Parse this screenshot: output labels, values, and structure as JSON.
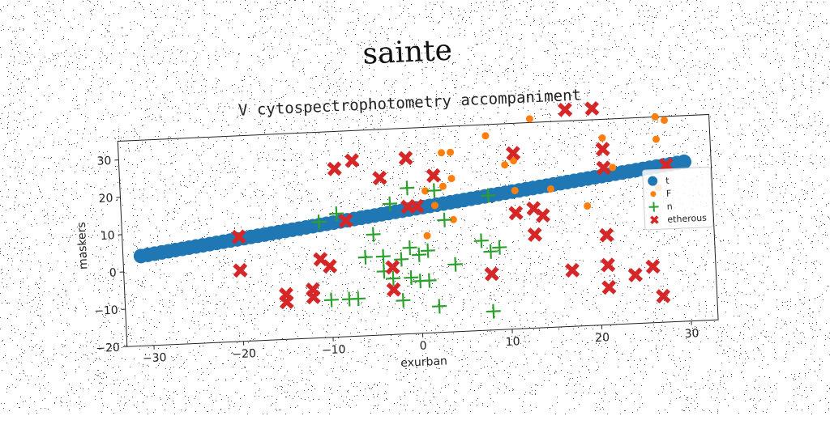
{
  "chart_data": {
    "type": "scatter",
    "title": "sainte",
    "subtitle": "V cytospectrophotometry accompaniment",
    "xlabel": "exurban",
    "ylabel": "maskers",
    "xlim": [
      -33,
      33
    ],
    "ylim": [
      -20,
      35
    ],
    "xticks": [
      -30,
      -20,
      -10,
      0,
      10,
      20,
      30
    ],
    "yticks": [
      -20,
      -10,
      0,
      10,
      20,
      30
    ],
    "grid": false,
    "legend_position": "right",
    "series": [
      {
        "name": "t",
        "color": "#1f77b4",
        "marker": "circle-large",
        "line": {
          "slope": 0.305,
          "intercept": 13.5,
          "x_start": -31,
          "x_end": 30,
          "count": 80
        }
      },
      {
        "name": "F",
        "color": "#ff7f0e",
        "marker": "circle-small",
        "points": [
          [
            13,
            36
          ],
          [
            27,
            35
          ],
          [
            28,
            34
          ],
          [
            8,
            32
          ],
          [
            21,
            30
          ],
          [
            27,
            29
          ],
          [
            3,
            28
          ],
          [
            4,
            28
          ],
          [
            2,
            22
          ],
          [
            4,
            21
          ],
          [
            10,
            24
          ],
          [
            1,
            18
          ],
          [
            3,
            19
          ],
          [
            11,
            17
          ],
          [
            15,
            17
          ],
          [
            2,
            14
          ],
          [
            19,
            12
          ],
          [
            27,
            16
          ],
          [
            4,
            10
          ],
          [
            1,
            6
          ],
          [
            22,
            22
          ],
          [
            11,
            25
          ]
        ]
      },
      {
        "name": "n",
        "color": "#2ca02c",
        "marker": "plus",
        "points": [
          [
            -1,
            19
          ],
          [
            2,
            18
          ],
          [
            -3,
            15
          ],
          [
            -9,
            13
          ],
          [
            -11,
            11
          ],
          [
            3,
            10
          ],
          [
            8,
            16
          ],
          [
            -5,
            7
          ],
          [
            -6,
            1
          ],
          [
            -4,
            1
          ],
          [
            -2,
            0
          ],
          [
            0,
            1
          ],
          [
            1,
            2
          ],
          [
            -1,
            3
          ],
          [
            7,
            4
          ],
          [
            8,
            1
          ],
          [
            9,
            2
          ],
          [
            4,
            -2
          ],
          [
            -4,
            -3
          ],
          [
            -3,
            -5
          ],
          [
            -1,
            -5
          ],
          [
            0,
            -6
          ],
          [
            1,
            -6
          ],
          [
            -10,
            -10
          ],
          [
            -8,
            -10
          ],
          [
            -7,
            -10
          ],
          [
            -2,
            -11
          ],
          [
            2,
            -13
          ],
          [
            8,
            -15
          ]
        ]
      },
      {
        "name": "etherous",
        "color": "#d62728",
        "marker": "x",
        "points": [
          [
            17,
            38
          ],
          [
            20,
            38
          ],
          [
            11,
            27
          ],
          [
            21,
            27
          ],
          [
            -9,
            25
          ],
          [
            -7,
            27
          ],
          [
            -4,
            22
          ],
          [
            -1,
            27
          ],
          [
            2,
            22
          ],
          [
            21,
            22
          ],
          [
            28,
            22
          ],
          [
            -20,
            8
          ],
          [
            -8,
            11
          ],
          [
            -1,
            14
          ],
          [
            0,
            14
          ],
          [
            11,
            11
          ],
          [
            13,
            12
          ],
          [
            14,
            10
          ],
          [
            13,
            5
          ],
          [
            21,
            4
          ],
          [
            -20,
            -1
          ],
          [
            -11,
            1
          ],
          [
            -10,
            -1
          ],
          [
            -3,
            -2
          ],
          [
            -15,
            -8
          ],
          [
            -15,
            -10
          ],
          [
            -12,
            -7
          ],
          [
            -12,
            -9
          ],
          [
            -3,
            -8
          ],
          [
            8,
            -5
          ],
          [
            17,
            -5
          ],
          [
            21,
            -4
          ],
          [
            21,
            -10
          ],
          [
            24,
            -7
          ],
          [
            26,
            -5
          ],
          [
            27,
            -13
          ]
        ]
      }
    ]
  }
}
